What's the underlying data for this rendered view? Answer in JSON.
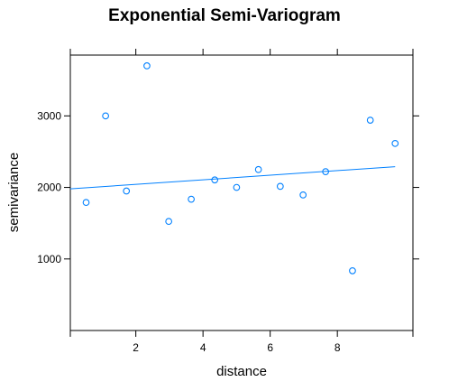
{
  "chart_data": {
    "type": "scatter",
    "title": "Exponential Semi-Variogram",
    "xlabel": "distance",
    "ylabel": "semivariance",
    "xlim": [
      0.05,
      10.25
    ],
    "ylim": [
      0,
      3850
    ],
    "xticks": [
      2,
      4,
      6,
      8
    ],
    "yticks": [
      1000,
      2000,
      3000
    ],
    "grid": false,
    "colors": {
      "points": "#0080ff",
      "line": "#0080ff",
      "frame": "#000000"
    },
    "series": [
      {
        "type": "scatter",
        "x": [
          0.52,
          1.1,
          1.72,
          2.33,
          2.98,
          3.65,
          4.35,
          5.0,
          5.65,
          6.3,
          6.98,
          7.65,
          8.45,
          8.98,
          9.72
        ],
        "y": [
          1790,
          3000,
          1950,
          3700,
          1525,
          1835,
          2105,
          2000,
          2250,
          2015,
          1895,
          2220,
          835,
          2940,
          2615
        ]
      },
      {
        "type": "line",
        "x": [
          0.05,
          9.72
        ],
        "y": [
          1980,
          2290
        ]
      }
    ]
  }
}
